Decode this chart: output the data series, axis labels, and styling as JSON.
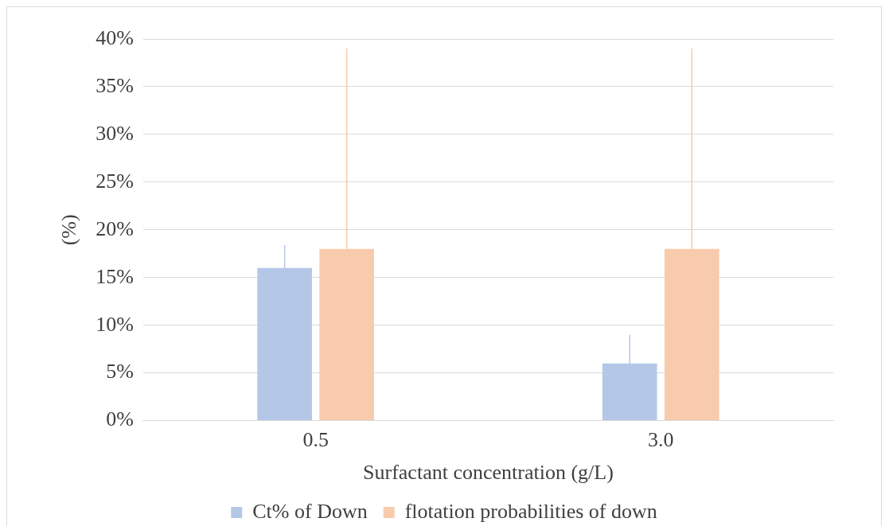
{
  "chart_data": {
    "type": "bar",
    "xlabel": "Surfactant concentration (g/L)",
    "ylabel": "(%)",
    "categories": [
      "0.5",
      "3.0"
    ],
    "series": [
      {
        "name": "Ct% of Down",
        "color": "#b4c7e7",
        "values": [
          16,
          6
        ],
        "errors": [
          2.4,
          3
        ]
      },
      {
        "name": "flotation probabilities of down",
        "color": "#f8cbad",
        "values": [
          18,
          18
        ],
        "errors": [
          [
            18,
            39
          ],
          [
            18,
            39
          ]
        ]
      }
    ],
    "ylim": [
      0,
      40
    ],
    "yticks": [
      {
        "value": 0,
        "label": "0%"
      },
      {
        "value": 5,
        "label": "5%"
      },
      {
        "value": 10,
        "label": "10%"
      },
      {
        "value": 15,
        "label": "15%"
      },
      {
        "value": 20,
        "label": "20%"
      },
      {
        "value": 25,
        "label": "25%"
      },
      {
        "value": 30,
        "label": "30%"
      },
      {
        "value": 35,
        "label": "35%"
      },
      {
        "value": 40,
        "label": "40%"
      }
    ],
    "grid": "y",
    "legend": "bottom"
  }
}
